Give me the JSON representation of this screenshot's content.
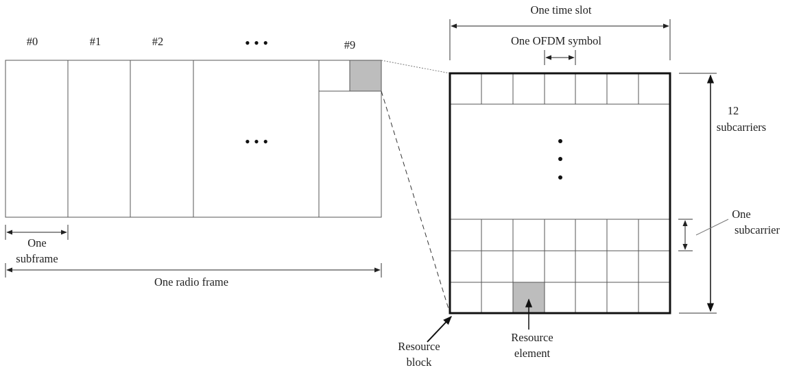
{
  "radio_frame": {
    "subframe_labels": [
      "#0",
      "#1",
      "#2",
      "#9"
    ],
    "ellipsis": "• • •",
    "one_subframe_label": [
      "One",
      "subframe"
    ],
    "one_radio_frame_label": "One radio frame"
  },
  "resource_grid": {
    "one_time_slot_label": "One time slot",
    "one_ofdm_symbol_label": "One OFDM symbol",
    "subcarriers_label": [
      "12",
      "subcarriers"
    ],
    "one_subcarrier_label": [
      "One",
      "subcarrier"
    ],
    "resource_block_label": [
      "Resource",
      "block"
    ],
    "resource_element_label": [
      "Resource",
      "element"
    ]
  },
  "colors": {
    "line": "#333333",
    "highlight_fill": "#bdbdbd"
  }
}
